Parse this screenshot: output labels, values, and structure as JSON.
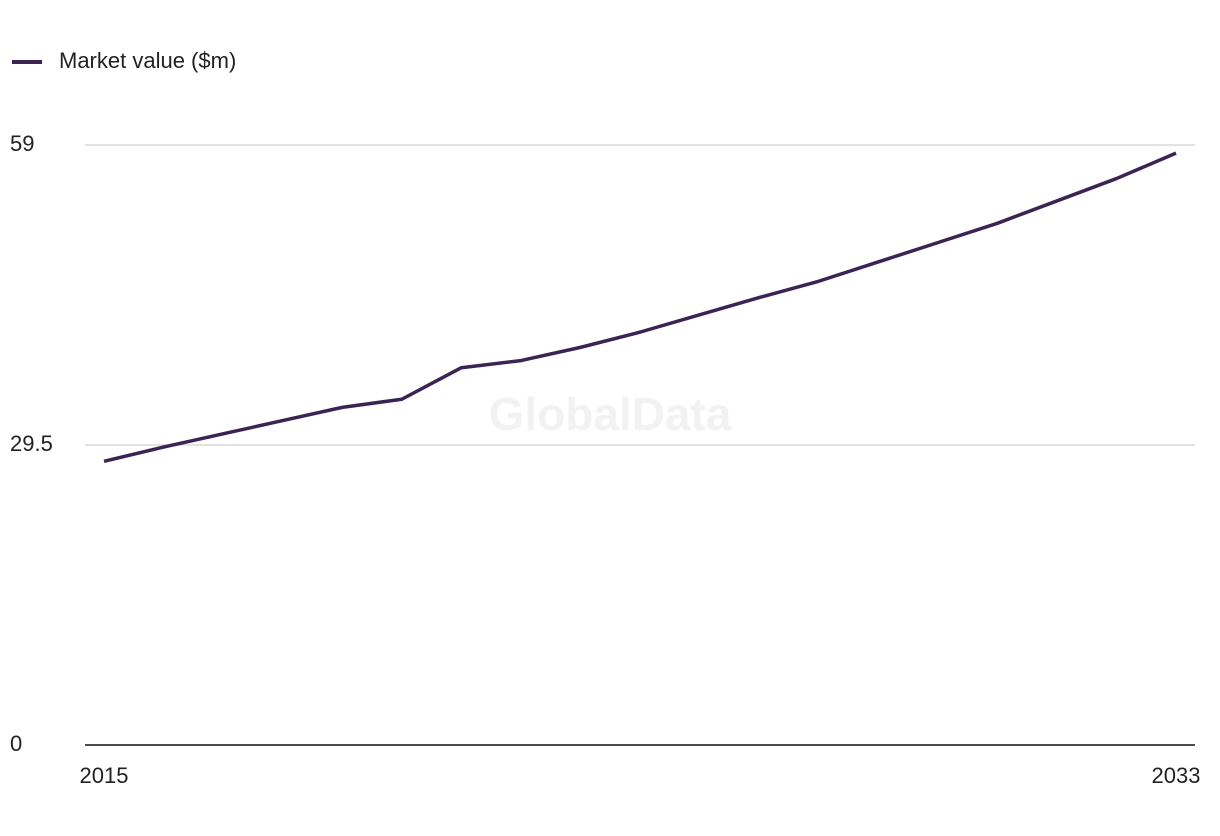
{
  "chart_data": {
    "type": "line",
    "watermark": "GlobalData",
    "x": [
      2015,
      2016,
      2017,
      2018,
      2019,
      2020,
      2021,
      2022,
      2023,
      2024,
      2025,
      2026,
      2027,
      2028,
      2029,
      2030,
      2031,
      2032,
      2033
    ],
    "series": [
      {
        "name": "Market value ($m)",
        "color": "#3b2454",
        "values": [
          27.9,
          29.3,
          30.6,
          31.9,
          33.2,
          34.0,
          37.1,
          37.8,
          39.1,
          40.6,
          42.3,
          44.0,
          45.6,
          47.5,
          49.4,
          51.3,
          53.5,
          55.7,
          58.2
        ]
      }
    ],
    "xlim": [
      2015,
      2033
    ],
    "xticks": [
      2015,
      2033
    ],
    "ylim": [
      0,
      59
    ],
    "yticks": [
      0,
      29.5,
      59
    ],
    "grid": true,
    "legend": "top-left"
  }
}
